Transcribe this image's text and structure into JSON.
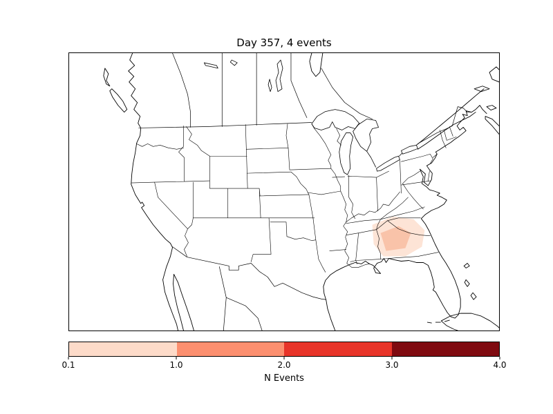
{
  "figure": {
    "title": "Day 357, 4 events"
  },
  "colorbar": {
    "label": "N Events",
    "ticks": [
      "0.1",
      "1.0",
      "2.0",
      "3.0",
      "4.0"
    ],
    "tick_positions_pct": [
      0,
      25,
      50,
      75,
      100
    ],
    "segment_colors": [
      "#fddbc9",
      "#fc8f6f",
      "#e83429",
      "#7f0a10"
    ],
    "outline_color": "#000000"
  },
  "map": {
    "background_color": "#ffffff",
    "coast_line_color": "#000000",
    "state_line_color": "#000000",
    "event_region_outer_fill": "#fde4d6",
    "event_region_inner_fill": "#f9c3a9"
  },
  "chart_data": {
    "type": "heatmap",
    "subtype": "choropleth_event_map",
    "title": "Day 357, 4 events",
    "day": 357,
    "n_events": 4,
    "region_shown": "Continental United States with southern Canada, northern Mexico, Great Lakes, Cuba and Bahamas visible",
    "colorbar": {
      "label": "N Events",
      "tick_values": [
        0.1,
        1.0,
        2.0,
        3.0,
        4.0
      ],
      "orientation": "horizontal",
      "bins": [
        {
          "range": [
            0.1,
            1.0
          ],
          "color": "#fddbc9"
        },
        {
          "range": [
            1.0,
            2.0
          ],
          "color": "#fc8f6f"
        },
        {
          "range": [
            2.0,
            3.0
          ],
          "color": "#e83429"
        },
        {
          "range": [
            3.0,
            4.0
          ],
          "color": "#7f0a10"
        }
      ]
    },
    "shaded_regions": [
      {
        "location": "Georgia / western South Carolina (southeastern US)",
        "value_bin": [
          0.1,
          1.0
        ],
        "appearance": "pale pink event polygon over state area with slightly darker salmon core over central Georgia"
      }
    ],
    "grid": false,
    "legend_position": "bottom colorbar"
  }
}
